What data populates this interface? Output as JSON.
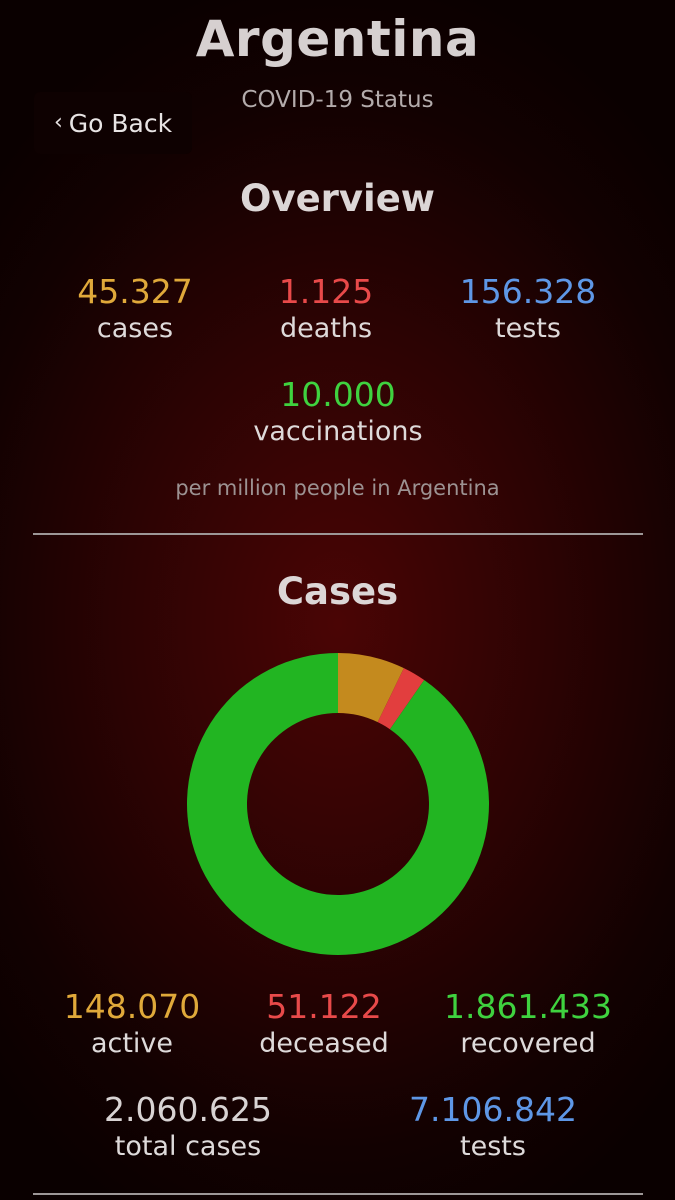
{
  "header": {
    "title": "Argentina",
    "subtitle": "COVID-19 Status",
    "back_label": "Go Back",
    "back_icon": "chevron-left-icon"
  },
  "overview": {
    "title": "Overview",
    "stats": [
      {
        "value": "45.327",
        "label": "cases",
        "color": "#e0a93a"
      },
      {
        "value": "1.125",
        "label": "deaths",
        "color": "#e84a4a"
      },
      {
        "value": "156.328",
        "label": "tests",
        "color": "#5e97e6"
      },
      {
        "value": "10.000",
        "label": "vaccinations",
        "color": "#3fd23f"
      }
    ],
    "footnote": "per million people in Argentina"
  },
  "cases": {
    "title": "Cases",
    "stats": [
      {
        "value": "148.070",
        "label": "active",
        "color": "#e0a93a"
      },
      {
        "value": "51.122",
        "label": "deceased",
        "color": "#e84a4a"
      },
      {
        "value": "1.861.433",
        "label": "recovered",
        "color": "#3fd23f"
      },
      {
        "value": "2.060.625",
        "label": "total cases",
        "color": "#d8d3d3"
      },
      {
        "value": "7.106.842",
        "label": "tests",
        "color": "#5e97e6"
      }
    ]
  },
  "chart_data": {
    "type": "pie",
    "variant": "donut",
    "categories": [
      "active",
      "deceased",
      "recovered"
    ],
    "values": [
      148070,
      51122,
      1861433
    ],
    "colors": [
      "#c48a1e",
      "#e23e3e",
      "#22b522"
    ]
  }
}
